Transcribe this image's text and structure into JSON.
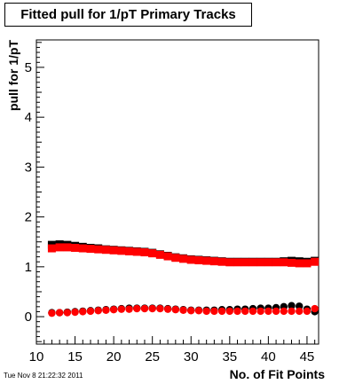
{
  "chart_data": {
    "type": "scatter",
    "title": "Fitted pull for 1/pT Primary Tracks",
    "xlabel": "No. of Fit Points",
    "ylabel": "pull for 1/pT",
    "xlim": [
      10,
      46.5
    ],
    "ylim": [
      -0.55,
      5.55
    ],
    "x_ticks": [
      10,
      15,
      20,
      25,
      30,
      35,
      40,
      45
    ],
    "y_ticks": [
      0,
      1,
      2,
      3,
      4,
      5
    ],
    "grid": false,
    "legend": "none",
    "x": [
      12,
      13,
      14,
      15,
      16,
      17,
      18,
      19,
      20,
      21,
      22,
      23,
      24,
      25,
      26,
      27,
      28,
      29,
      30,
      31,
      32,
      33,
      34,
      35,
      36,
      37,
      38,
      39,
      40,
      41,
      42,
      43,
      44,
      45,
      46
    ],
    "series": [
      {
        "color": "#000000",
        "marker": "square",
        "values": [
          1.44,
          1.45,
          1.44,
          1.42,
          1.4,
          1.38,
          1.37,
          1.35,
          1.34,
          1.33,
          1.32,
          1.31,
          1.3,
          1.28,
          1.25,
          1.22,
          1.19,
          1.17,
          1.15,
          1.14,
          1.13,
          1.12,
          1.11,
          1.1,
          1.1,
          1.1,
          1.1,
          1.1,
          1.1,
          1.1,
          1.11,
          1.12,
          1.11,
          1.1,
          1.12
        ]
      },
      {
        "color": "#ff0000",
        "marker": "square",
        "values": [
          1.37,
          1.39,
          1.39,
          1.38,
          1.37,
          1.36,
          1.35,
          1.34,
          1.33,
          1.32,
          1.31,
          1.3,
          1.29,
          1.27,
          1.24,
          1.21,
          1.18,
          1.16,
          1.14,
          1.13,
          1.12,
          1.11,
          1.1,
          1.09,
          1.09,
          1.09,
          1.09,
          1.09,
          1.09,
          1.09,
          1.09,
          1.08,
          1.07,
          1.07,
          1.1
        ]
      },
      {
        "color": "#000000",
        "marker": "circle",
        "values": [
          0.08,
          0.08,
          0.09,
          0.1,
          0.11,
          0.12,
          0.13,
          0.14,
          0.15,
          0.16,
          0.17,
          0.17,
          0.17,
          0.17,
          0.17,
          0.16,
          0.15,
          0.14,
          0.13,
          0.13,
          0.13,
          0.13,
          0.14,
          0.14,
          0.15,
          0.15,
          0.16,
          0.17,
          0.17,
          0.18,
          0.2,
          0.22,
          0.21,
          0.15,
          0.1
        ]
      },
      {
        "color": "#ff0000",
        "marker": "circle",
        "values": [
          0.07,
          0.08,
          0.08,
          0.09,
          0.1,
          0.11,
          0.12,
          0.13,
          0.14,
          0.15,
          0.15,
          0.16,
          0.16,
          0.16,
          0.16,
          0.15,
          0.14,
          0.13,
          0.12,
          0.12,
          0.11,
          0.11,
          0.11,
          0.11,
          0.11,
          0.11,
          0.11,
          0.11,
          0.11,
          0.11,
          0.11,
          0.11,
          0.11,
          0.11,
          0.16
        ]
      }
    ]
  },
  "footer": {
    "timestamp": "Tue Nov  8 21:22:32 2011"
  }
}
